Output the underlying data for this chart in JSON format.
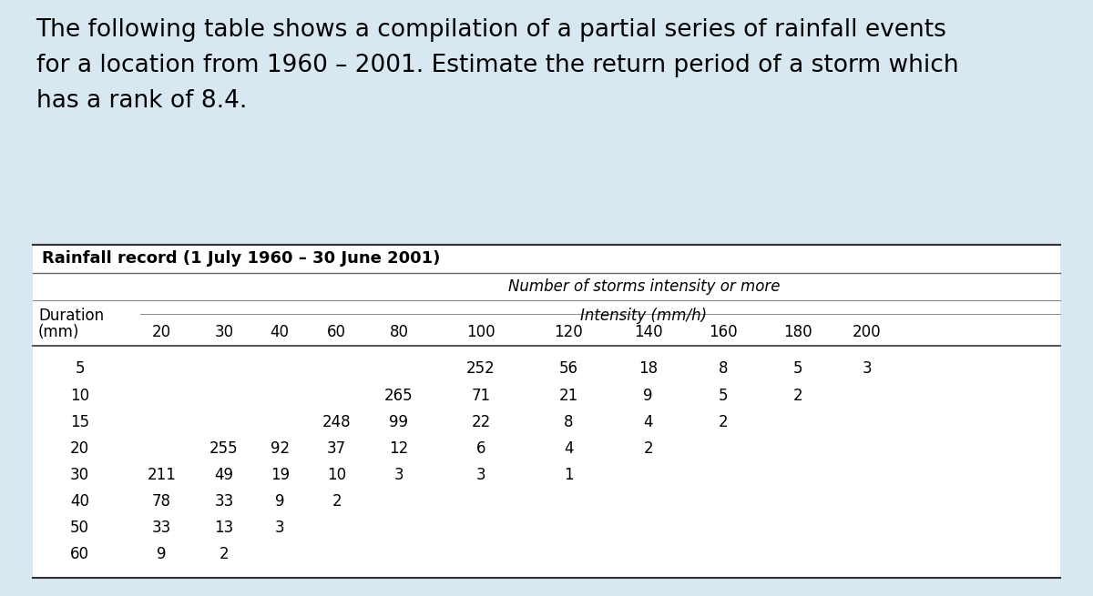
{
  "title_text": "The following table shows a compilation of a partial series of rainfall events\nfor a location from 1960 – 2001. Estimate the return period of a storm which\nhas a rank of 8.4.",
  "table_title": "Rainfall record (1 July 1960 – 30 June 2001)",
  "col_header_main": "Number of storms intensity or more",
  "col_header_sub": "Intensity (mm/h)",
  "row_header_label1": "Duration",
  "row_header_label2": "(mm)",
  "intensity_cols": [
    "20",
    "30",
    "40",
    "60",
    "80",
    "100",
    "120",
    "140",
    "160",
    "180",
    "200"
  ],
  "durations": [
    "5",
    "10",
    "15",
    "20",
    "30",
    "40",
    "50",
    "60"
  ],
  "table_data": {
    "5": {
      "100": "252",
      "120": "56",
      "140": "18",
      "160": "8",
      "180": "5",
      "200": "3"
    },
    "10": {
      "80": "265",
      "100": "71",
      "120": "21",
      "140": "9",
      "160": "5",
      "180": "2"
    },
    "15": {
      "60": "248",
      "80": "99",
      "100": "22",
      "120": "8",
      "140": "4",
      "160": "2"
    },
    "20": {
      "30": "255",
      "40": "92",
      "60": "37",
      "80": "12",
      "100": "6",
      "120": "4",
      "140": "2"
    },
    "30": {
      "20": "211",
      "30": "49",
      "40": "19",
      "60": "10",
      "80": "3",
      "100": "3",
      "120": "1"
    },
    "40": {
      "20": "78",
      "30": "33",
      "40": "9",
      "60": "2"
    },
    "50": {
      "20": "33",
      "30": "13",
      "40": "3"
    },
    "60": {
      "20": "9",
      "30": "2"
    }
  },
  "bg_color": "#d8e8f0",
  "table_bg_color": "#ffffff",
  "title_fontsize": 19,
  "table_title_fontsize": 13,
  "header_fontsize": 12,
  "cell_fontsize": 12
}
